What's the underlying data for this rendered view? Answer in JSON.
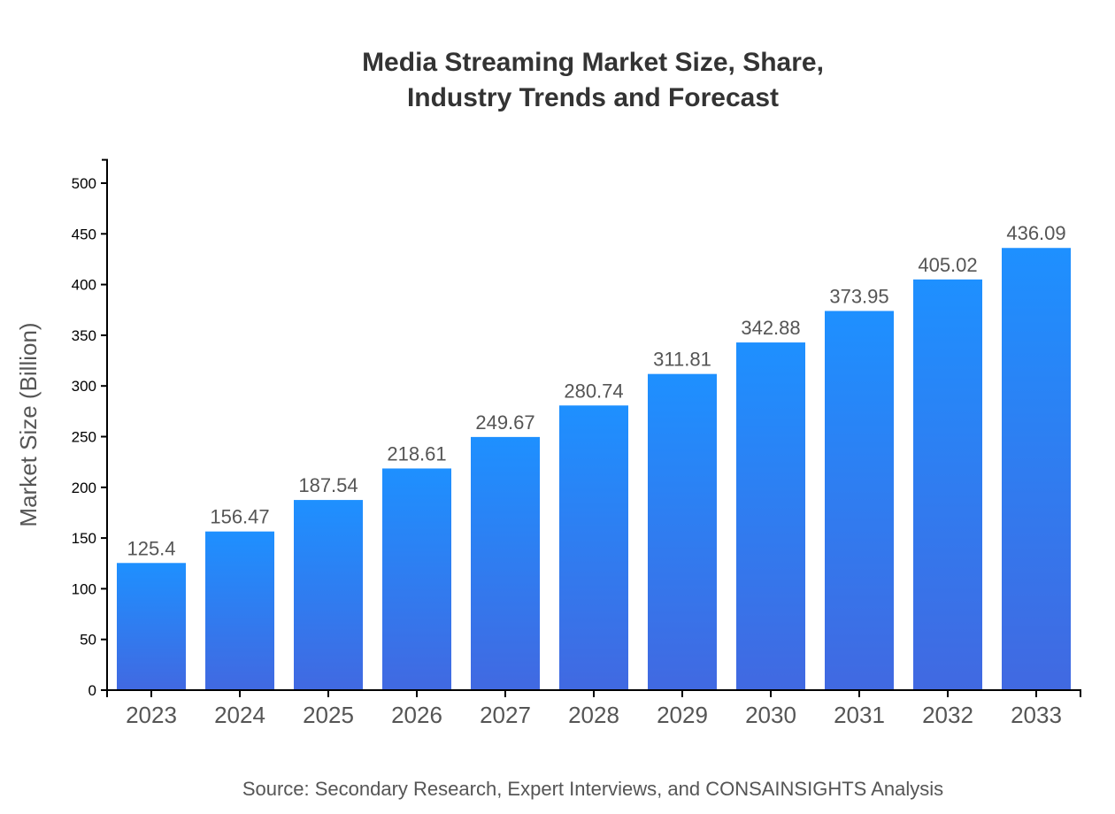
{
  "chart_data": {
    "type": "bar",
    "title_lines": [
      "Media Streaming Market Size, Share,",
      "Industry Trends and Forecast"
    ],
    "xlabel": "",
    "ylabel": "Market Size (Billion)",
    "categories": [
      "2023",
      "2024",
      "2025",
      "2026",
      "2027",
      "2028",
      "2029",
      "2030",
      "2031",
      "2032",
      "2033"
    ],
    "values": [
      125.4,
      156.47,
      187.54,
      218.61,
      249.67,
      280.74,
      311.81,
      342.88,
      373.95,
      405.02,
      436.09
    ],
    "ylim": [
      0,
      523
    ],
    "yticks": [
      0,
      50,
      100,
      150,
      200,
      250,
      300,
      350,
      400,
      450,
      500
    ],
    "grid": false,
    "bar_gradient": [
      "#1E90FF",
      "#4169E1"
    ],
    "source": "Source: Secondary Research, Expert Interviews, and CONSAINSIGHTS Analysis"
  }
}
